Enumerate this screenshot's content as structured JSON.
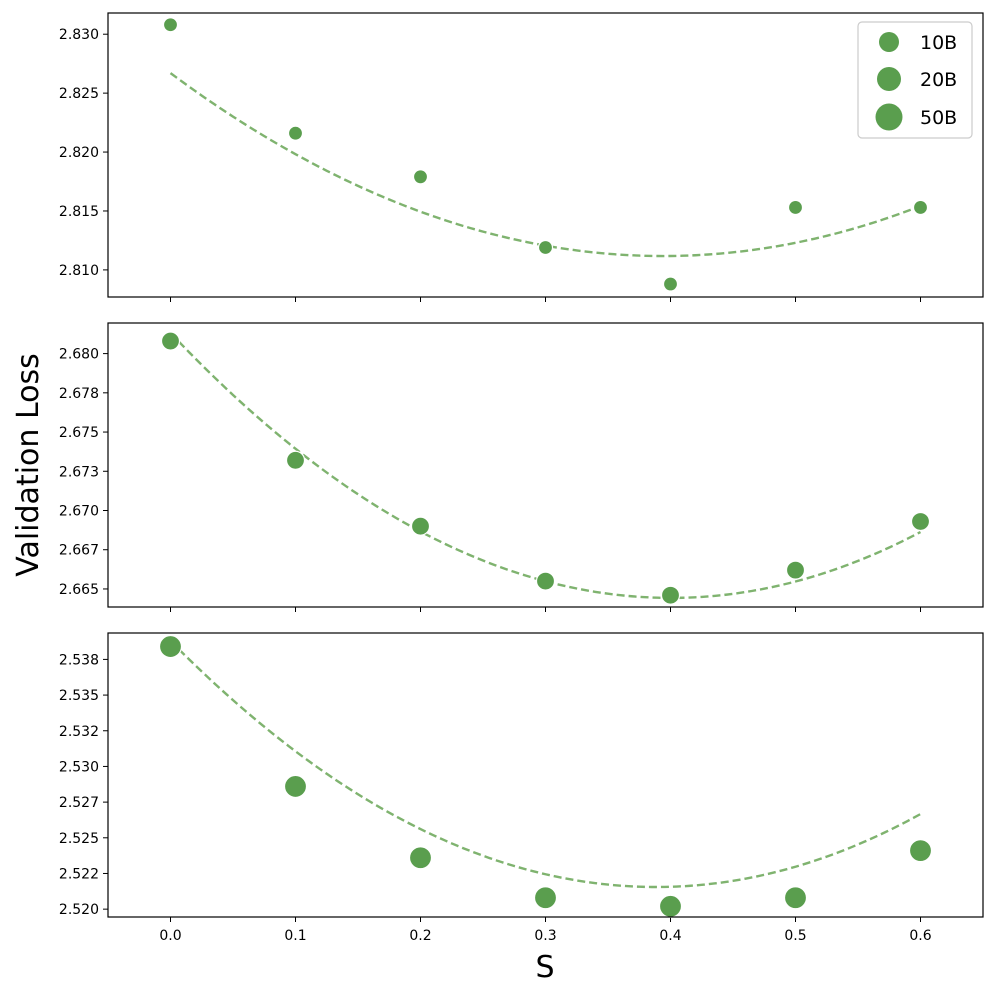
{
  "chart_data": {
    "type": "scatter",
    "ylabel": "Validation Loss",
    "xlabel": "S",
    "shared_x": {
      "xlim": [
        -0.05,
        0.65
      ],
      "ticks": [
        0.0,
        0.1,
        0.2,
        0.3,
        0.4,
        0.5,
        0.6
      ],
      "tick_labels": [
        "0.0",
        "0.1",
        "0.2",
        "0.3",
        "0.4",
        "0.5",
        "0.6"
      ]
    },
    "legend": {
      "placement": "top-right",
      "entries": [
        "10B",
        "20B",
        "50B"
      ]
    },
    "marker_color": "#5a9e4e",
    "fit_color": "#7fb36f",
    "panels": [
      {
        "series": "10B",
        "x": [
          0.0,
          0.1,
          0.2,
          0.3,
          0.4,
          0.5,
          0.6
        ],
        "y": [
          2.8308,
          2.8216,
          2.8179,
          2.8119,
          2.8088,
          2.8153,
          2.8153
        ],
        "fit": {
          "kind": "quadratic",
          "coeffs": [
            0.1,
            -0.0788,
            2.8267
          ]
        },
        "ylim": [
          2.8077,
          2.8318
        ],
        "yticks": [
          2.81,
          2.815,
          2.82,
          2.825,
          2.83
        ],
        "ytick_labels": [
          "2.810",
          "2.815",
          "2.820",
          "2.825",
          "2.830"
        ]
      },
      {
        "series": "20B",
        "x": [
          0.0,
          0.1,
          0.2,
          0.3,
          0.4,
          0.5,
          0.6
        ],
        "y": [
          2.6808,
          2.6732,
          2.669,
          2.6655,
          2.6646,
          2.6662,
          2.6693
        ],
        "fit": {
          "kind": "quadratic",
          "coeffs": [
            0.10536,
            -0.08437,
            2.68132
          ]
        },
        "ylim": [
          2.66385,
          2.68195
        ],
        "yticks": [
          2.665,
          2.6675,
          2.67,
          2.6725,
          2.675,
          2.6775,
          2.68
        ],
        "ytick_labels": [
          "2.665",
          "2.667",
          "2.670",
          "2.673",
          "2.675",
          "2.678",
          "2.680"
        ]
      },
      {
        "series": "50B",
        "x": [
          0.0,
          0.1,
          0.2,
          0.3,
          0.4,
          0.5,
          0.6
        ],
        "y": [
          2.5384,
          2.5286,
          2.5236,
          2.5208,
          2.5202,
          2.5208,
          2.5241
        ],
        "fit": {
          "kind": "quadratic",
          "coeffs": [
            0.11429,
            -0.0888,
            2.5388
          ]
        },
        "ylim": [
          2.51945,
          2.53935
        ],
        "yticks": [
          2.52,
          2.5225,
          2.525,
          2.5275,
          2.53,
          2.5325,
          2.535,
          2.5375
        ],
        "ytick_labels": [
          "2.520",
          "2.522",
          "2.525",
          "2.527",
          "2.530",
          "2.532",
          "2.535",
          "2.538"
        ]
      }
    ]
  }
}
